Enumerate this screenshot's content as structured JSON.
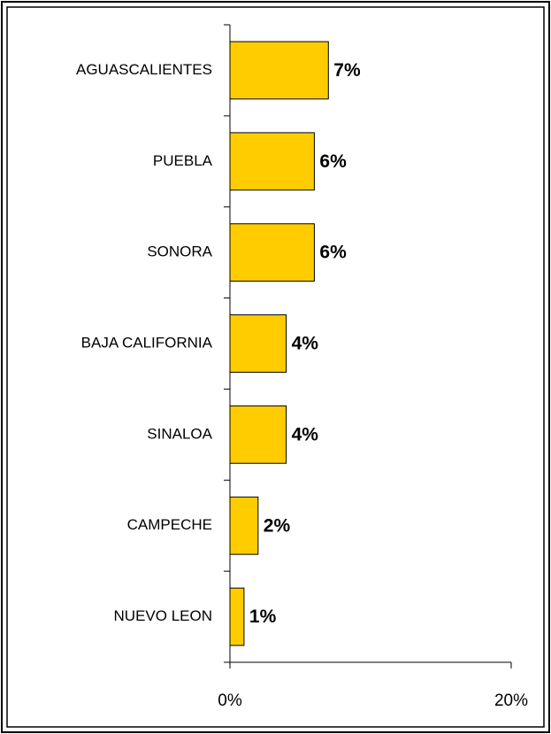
{
  "chart_data": {
    "type": "barh",
    "categories": [
      "AGUASCALIENTES",
      "PUEBLA",
      "SONORA",
      "BAJA CALIFORNIA",
      "SINALOA",
      "CAMPECHE",
      "NUEVO LEON"
    ],
    "values": [
      7,
      6,
      6,
      4,
      4,
      2,
      1
    ],
    "value_labels": [
      "7%",
      "6%",
      "6%",
      "4%",
      "4%",
      "2%",
      "1%"
    ],
    "color": "#ffcc00",
    "xlim": [
      0,
      20
    ],
    "xticks": [
      {
        "value": 0,
        "label": "0%"
      },
      {
        "value": 20,
        "label": "20%"
      }
    ]
  }
}
